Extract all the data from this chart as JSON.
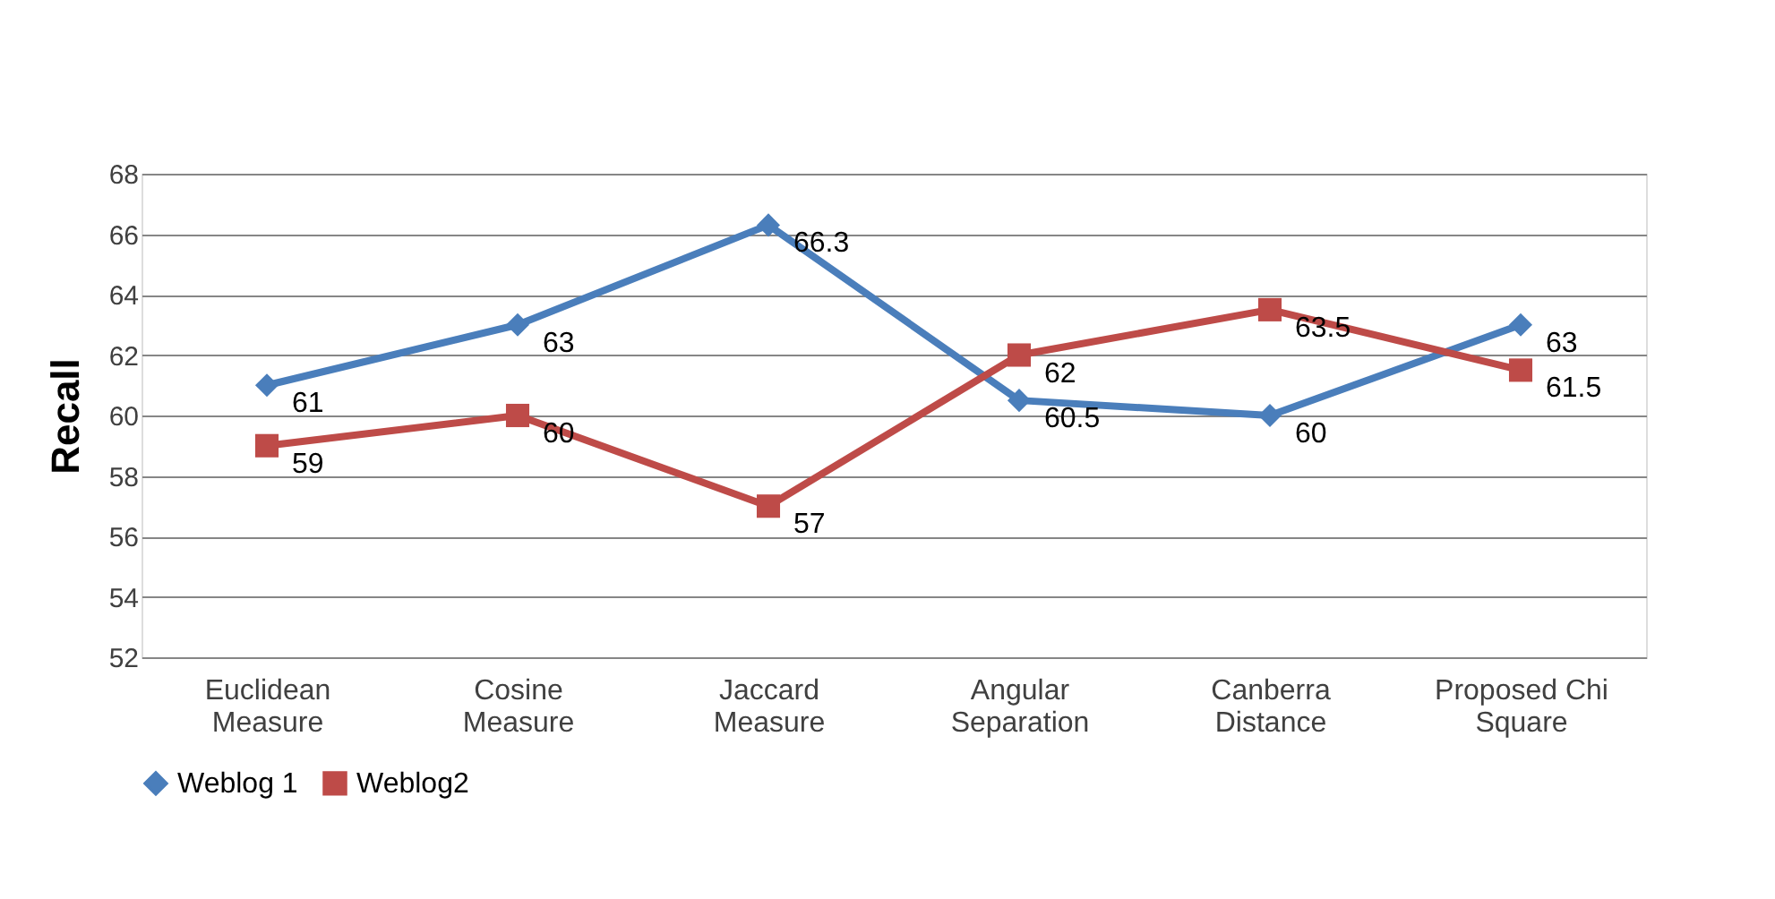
{
  "chart_data": {
    "type": "line",
    "ylabel": "Recall",
    "categories": [
      "Euclidean Measure",
      "Cosine Measure",
      "Jaccard Measure",
      "Angular Separation",
      "Canberra Distance",
      "Proposed Chi Square"
    ],
    "series": [
      {
        "name": "Weblog 1",
        "color": "#4a7ebb",
        "marker": "diamond",
        "values": [
          61,
          63,
          66.3,
          60.5,
          60,
          63
        ]
      },
      {
        "name": "Weblog2",
        "color": "#be4b48",
        "marker": "square",
        "values": [
          59,
          60,
          57,
          62,
          63.5,
          61.5
        ]
      }
    ],
    "ylim": [
      52,
      68
    ],
    "yticks": [
      52,
      54,
      56,
      58,
      60,
      62,
      64,
      66,
      68
    ],
    "grid": "y",
    "legend": "bottom",
    "data_labels": true
  }
}
